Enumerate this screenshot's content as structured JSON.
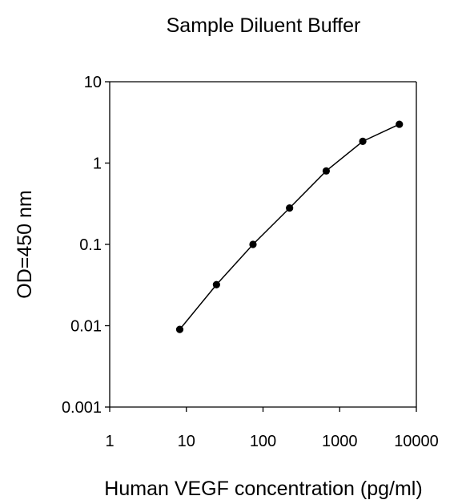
{
  "chart_data": {
    "type": "line",
    "title": "Sample Diluent Buffer",
    "xlabel": "Human VEGF concentration (pg/ml)",
    "ylabel": "OD=450 nm",
    "x_scale": "log",
    "y_scale": "log",
    "xlim": [
      1,
      10000
    ],
    "ylim": [
      0.001,
      10
    ],
    "x_ticks": [
      1,
      10,
      100,
      1000,
      10000
    ],
    "x_tick_labels": [
      "1",
      "10",
      "100",
      "1000",
      "10000"
    ],
    "y_ticks": [
      0.001,
      0.01,
      0.1,
      1,
      10
    ],
    "y_tick_labels": [
      "0.001",
      "0.01",
      "0.1",
      "1",
      "10"
    ],
    "grid": false,
    "legend": "none",
    "series": [
      {
        "x": [
          8.2,
          24.7,
          74,
          222,
          667,
          2000,
          6000
        ],
        "y": [
          0.009,
          0.032,
          0.1,
          0.28,
          0.8,
          1.85,
          3.0
        ],
        "color": "#000000",
        "marker": "circle"
      }
    ]
  }
}
